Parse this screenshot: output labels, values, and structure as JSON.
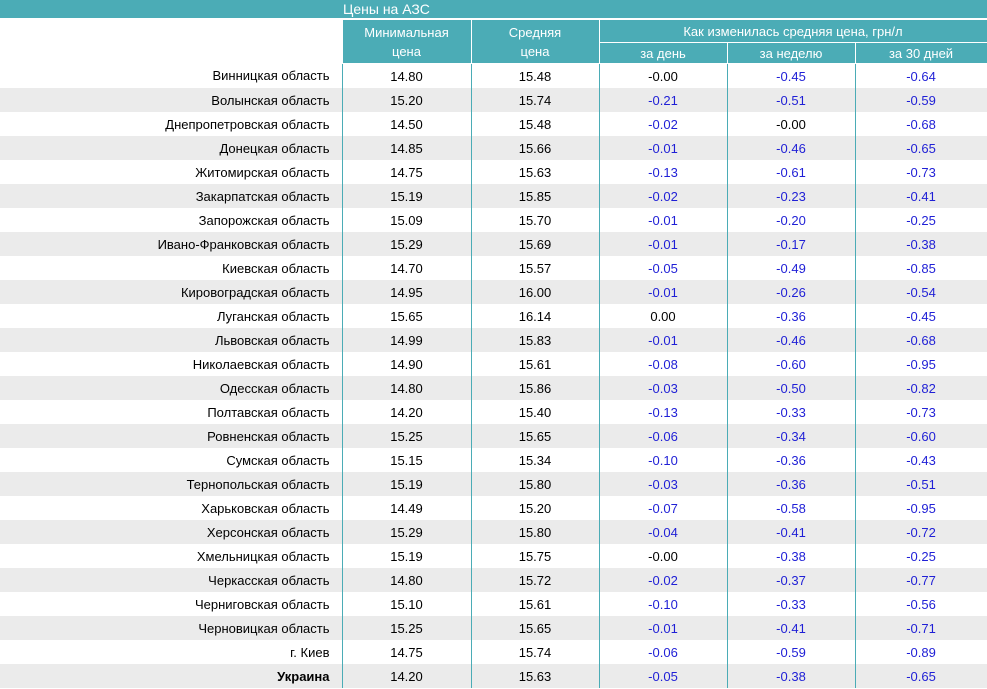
{
  "title": "Цены на АЗС",
  "headers": {
    "min_line1": "Минимальная",
    "min_line2": "цена",
    "avg_line1": "Средняя",
    "avg_line2": "цена",
    "change_group": "Как изменилась средняя цена, грн/л",
    "per_day": "за день",
    "per_week": "за неделю",
    "per_30": "за 30 дней"
  },
  "colors": {
    "header_bg": "#4bacb6",
    "negative_text": "#1f1fd6",
    "stripe": "#ebebeb"
  },
  "rows": [
    {
      "name": "Винницкая область",
      "min": "14.80",
      "avg": "15.48",
      "day": "-0.00",
      "week": "-0.45",
      "month": "-0.64"
    },
    {
      "name": "Волынская область",
      "min": "15.20",
      "avg": "15.74",
      "day": "-0.21",
      "week": "-0.51",
      "month": "-0.59"
    },
    {
      "name": "Днепропетровская область",
      "min": "14.50",
      "avg": "15.48",
      "day": "-0.02",
      "week": "-0.00",
      "month": "-0.68"
    },
    {
      "name": "Донецкая область",
      "min": "14.85",
      "avg": "15.66",
      "day": "-0.01",
      "week": "-0.46",
      "month": "-0.65"
    },
    {
      "name": "Житомирская область",
      "min": "14.75",
      "avg": "15.63",
      "day": "-0.13",
      "week": "-0.61",
      "month": "-0.73"
    },
    {
      "name": "Закарпатская область",
      "min": "15.19",
      "avg": "15.85",
      "day": "-0.02",
      "week": "-0.23",
      "month": "-0.41"
    },
    {
      "name": "Запорожская область",
      "min": "15.09",
      "avg": "15.70",
      "day": "-0.01",
      "week": "-0.20",
      "month": "-0.25"
    },
    {
      "name": "Ивано-Франковская область",
      "min": "15.29",
      "avg": "15.69",
      "day": "-0.01",
      "week": "-0.17",
      "month": "-0.38"
    },
    {
      "name": "Киевская область",
      "min": "14.70",
      "avg": "15.57",
      "day": "-0.05",
      "week": "-0.49",
      "month": "-0.85"
    },
    {
      "name": "Кировоградская область",
      "min": "14.95",
      "avg": "16.00",
      "day": "-0.01",
      "week": "-0.26",
      "month": "-0.54"
    },
    {
      "name": "Луганская область",
      "min": "15.65",
      "avg": "16.14",
      "day": "0.00",
      "week": "-0.36",
      "month": "-0.45"
    },
    {
      "name": "Львовская область",
      "min": "14.99",
      "avg": "15.83",
      "day": "-0.01",
      "week": "-0.46",
      "month": "-0.68"
    },
    {
      "name": "Николаевская область",
      "min": "14.90",
      "avg": "15.61",
      "day": "-0.08",
      "week": "-0.60",
      "month": "-0.95"
    },
    {
      "name": "Одесская область",
      "min": "14.80",
      "avg": "15.86",
      "day": "-0.03",
      "week": "-0.50",
      "month": "-0.82"
    },
    {
      "name": "Полтавская область",
      "min": "14.20",
      "avg": "15.40",
      "day": "-0.13",
      "week": "-0.33",
      "month": "-0.73"
    },
    {
      "name": "Ровненская область",
      "min": "15.25",
      "avg": "15.65",
      "day": "-0.06",
      "week": "-0.34",
      "month": "-0.60"
    },
    {
      "name": "Сумская область",
      "min": "15.15",
      "avg": "15.34",
      "day": "-0.10",
      "week": "-0.36",
      "month": "-0.43"
    },
    {
      "name": "Тернопольская область",
      "min": "15.19",
      "avg": "15.80",
      "day": "-0.03",
      "week": "-0.36",
      "month": "-0.51"
    },
    {
      "name": "Харьковская область",
      "min": "14.49",
      "avg": "15.20",
      "day": "-0.07",
      "week": "-0.58",
      "month": "-0.95"
    },
    {
      "name": "Херсонская область",
      "min": "15.29",
      "avg": "15.80",
      "day": "-0.04",
      "week": "-0.41",
      "month": "-0.72"
    },
    {
      "name": "Хмельницкая область",
      "min": "15.19",
      "avg": "15.75",
      "day": "-0.00",
      "week": "-0.38",
      "month": "-0.25"
    },
    {
      "name": "Черкасская область",
      "min": "14.80",
      "avg": "15.72",
      "day": "-0.02",
      "week": "-0.37",
      "month": "-0.77"
    },
    {
      "name": "Черниговская область",
      "min": "15.10",
      "avg": "15.61",
      "day": "-0.10",
      "week": "-0.33",
      "month": "-0.56"
    },
    {
      "name": "Черновицкая область",
      "min": "15.25",
      "avg": "15.65",
      "day": "-0.01",
      "week": "-0.41",
      "month": "-0.71"
    },
    {
      "name": "г. Киев",
      "min": "14.75",
      "avg": "15.74",
      "day": "-0.06",
      "week": "-0.59",
      "month": "-0.89"
    },
    {
      "name": "Украина",
      "min": "14.20",
      "avg": "15.63",
      "day": "-0.05",
      "week": "-0.38",
      "month": "-0.65"
    }
  ]
}
